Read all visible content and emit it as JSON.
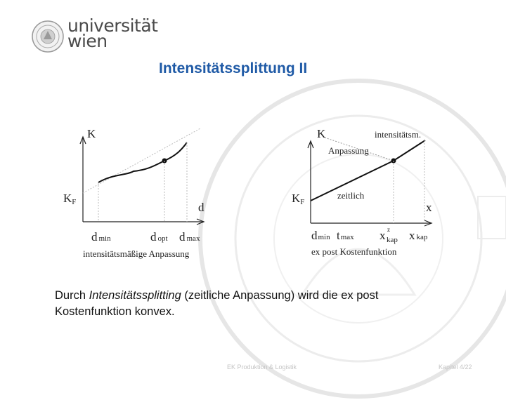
{
  "logo": {
    "line1": "universität",
    "line2": "wien"
  },
  "title": "Intensitätssplittung II",
  "left_chart": {
    "ylabel": "K",
    "kf_main": "K",
    "kf_sub": "F",
    "xlabel": "d",
    "dmin_main": "d",
    "dmin_sub": "min",
    "dopt_main": "d",
    "dopt_sub": "opt",
    "dmax_main": "d",
    "dmax_sub": "max",
    "caption": "intensitätsmäßige Anpassung"
  },
  "right_chart": {
    "ylabel": "K",
    "kf_main": "K",
    "kf_sub": "F",
    "xlabel": "x",
    "line_intens": "intensitätsm.",
    "line_anpassung": "Anpassung",
    "line_zeitlich": "zeitlich",
    "dmin_main": "d",
    "dmin_sub": "min",
    "tmax_main": "t",
    "tmax_sub": "max",
    "xzkap_main": "x",
    "xzkap_sup": "z",
    "xzkap_sub": "kap",
    "xkap_main": "x",
    "xkap_sub": "kap",
    "caption": "ex post Kostenfunktion"
  },
  "body": {
    "prefix": "Durch ",
    "italic": "Intensitätssplitting",
    "suffix": " (zeitliche Anpassung) wird die ex post",
    "line2": "Kostenfunktion konvex."
  },
  "footer": {
    "course": "EK Produktion & Logistik",
    "slide": "Kapitel 4/22"
  }
}
